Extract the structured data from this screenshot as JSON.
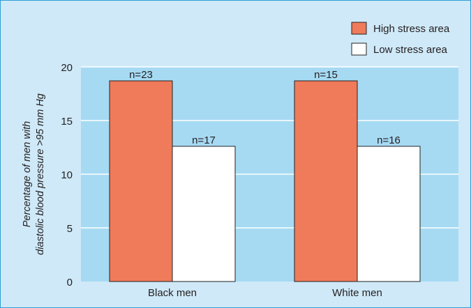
{
  "chart_data": {
    "type": "bar",
    "title": "",
    "xlabel": "",
    "ylabel_lines": [
      "Percentage of men with",
      "diastolic blood pressure >95 mm Hg"
    ],
    "categories": [
      "Black men",
      "White men"
    ],
    "series": [
      {
        "name": "High stress area",
        "values": [
          18.7,
          18.7
        ],
        "labels": [
          "n=23",
          "n=15"
        ],
        "color": "#f07b5a"
      },
      {
        "name": "Low stress area",
        "values": [
          12.6,
          12.6
        ],
        "labels": [
          "n=17",
          "n=16"
        ],
        "color": "#ffffff"
      }
    ],
    "ylim": [
      0,
      20
    ],
    "yticks": [
      0,
      5,
      10,
      15,
      20
    ],
    "grid": true,
    "legend_position": "top-right"
  },
  "colors": {
    "outer_background": "#cfe9f8",
    "plot_background": "#a6daf3",
    "frame_border": "#2e9fd6",
    "gridline": "#ffffff",
    "bar_outline": "#222222",
    "text": "#231f20"
  }
}
